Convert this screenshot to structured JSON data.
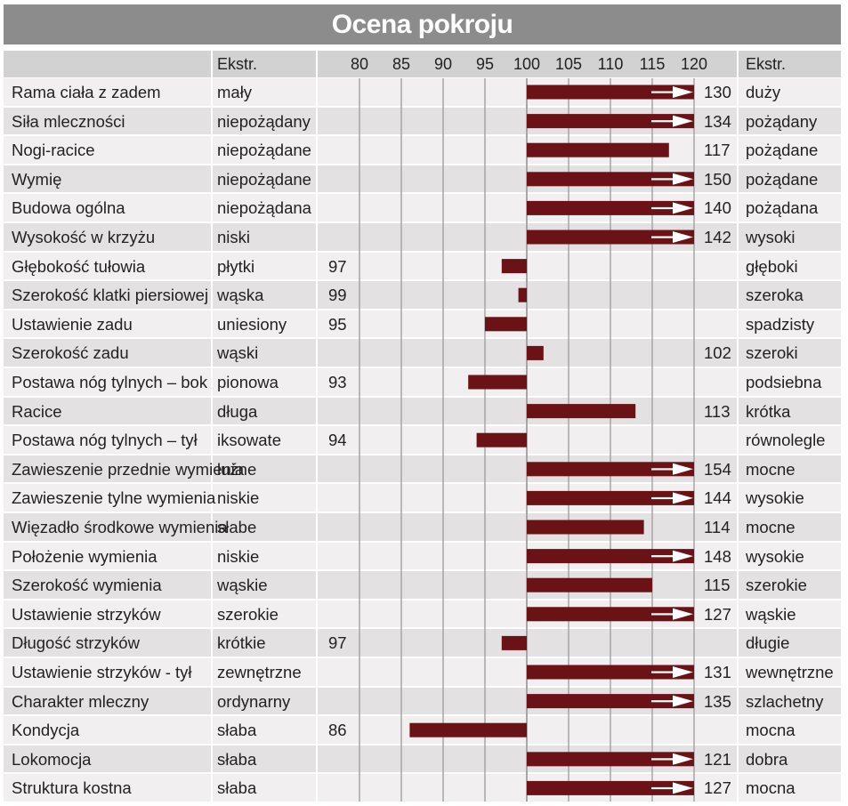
{
  "title": "Ocena pokroju",
  "header": {
    "extr_left": "Ekstr.",
    "extr_right": "Ekstr."
  },
  "colors": {
    "bar": "#6b1216",
    "grid": "#a6a6a6",
    "row_a": "#f1efef",
    "row_b": "#e3e1e2",
    "header": "#d3d2d2",
    "title_bg": "#8c8c8c"
  },
  "chart_data": {
    "type": "bar",
    "title": "Ocena pokroju",
    "baseline": 100,
    "xlim": [
      80,
      120
    ],
    "ticks": [
      "80",
      "85",
      "90",
      "95",
      "100",
      "105",
      "110",
      "115",
      "120"
    ],
    "grid": true,
    "overflow_marker": "arrow",
    "rows": [
      {
        "trait": "Rama ciała z zadem",
        "low": "mały",
        "value": 130,
        "high": "duży"
      },
      {
        "trait": "Siła mleczności",
        "low": "niepożądany",
        "value": 134,
        "high": "pożądany"
      },
      {
        "trait": "Nogi-racice",
        "low": "niepożądane",
        "value": 117,
        "high": "pożądane"
      },
      {
        "trait": "Wymię",
        "low": "niepożądane",
        "value": 150,
        "high": "pożądane"
      },
      {
        "trait": "Budowa ogólna",
        "low": "niepożądana",
        "value": 140,
        "high": "pożądana"
      },
      {
        "trait": "Wysokość w krzyżu",
        "low": "niski",
        "value": 142,
        "high": "wysoki"
      },
      {
        "trait": "Głębokość tułowia",
        "low": "płytki",
        "value": 97,
        "high": "głęboki"
      },
      {
        "trait": "Szerokość klatki piersiowej",
        "low": "wąska",
        "value": 99,
        "high": "szeroka"
      },
      {
        "trait": "Ustawienie zadu",
        "low": "uniesiony",
        "value": 95,
        "high": "spadzisty"
      },
      {
        "trait": "Szerokość zadu",
        "low": "wąski",
        "value": 102,
        "high": "szeroki"
      },
      {
        "trait": "Postawa nóg tylnych –  bok",
        "low": "pionowa",
        "value": 93,
        "high": "podsiebna"
      },
      {
        "trait": "Racice",
        "low": "długa",
        "value": 113,
        "high": "krótka"
      },
      {
        "trait": "Postawa nóg tylnych –  tył",
        "low": "iksowate",
        "value": 94,
        "high": "równolegle"
      },
      {
        "trait": "Zawieszenie przednie wymienia",
        "low": "luźne",
        "value": 154,
        "high": "mocne"
      },
      {
        "trait": "Zawieszenie tylne wymienia",
        "low": "niskie",
        "value": 144,
        "high": "wysokie"
      },
      {
        "trait": "Więzadło środkowe wymienia",
        "low": "słabe",
        "value": 114,
        "high": "mocne"
      },
      {
        "trait": "Położenie wymienia",
        "low": "niskie",
        "value": 148,
        "high": "wysokie"
      },
      {
        "trait": "Szerokość wymienia",
        "low": "wąskie",
        "value": 115,
        "high": "szerokie"
      },
      {
        "trait": "Ustawienie strzyków",
        "low": "szerokie",
        "value": 127,
        "high": "wąskie"
      },
      {
        "trait": "Długość strzyków",
        "low": "krótkie",
        "value": 97,
        "high": "długie"
      },
      {
        "trait": "Ustawienie strzyków - tył",
        "low": "zewnętrzne",
        "value": 131,
        "high": "wewnętrzne"
      },
      {
        "trait": "Charakter mleczny",
        "low": "ordynarny",
        "value": 135,
        "high": "szlachetny"
      },
      {
        "trait": "Kondycja",
        "low": "słaba",
        "value": 86,
        "high": "mocna"
      },
      {
        "trait": "Lokomocja",
        "low": "słaba",
        "value": 121,
        "high": "dobra"
      },
      {
        "trait": "Struktura kostna",
        "low": "słaba",
        "value": 127,
        "high": "mocna"
      }
    ]
  }
}
